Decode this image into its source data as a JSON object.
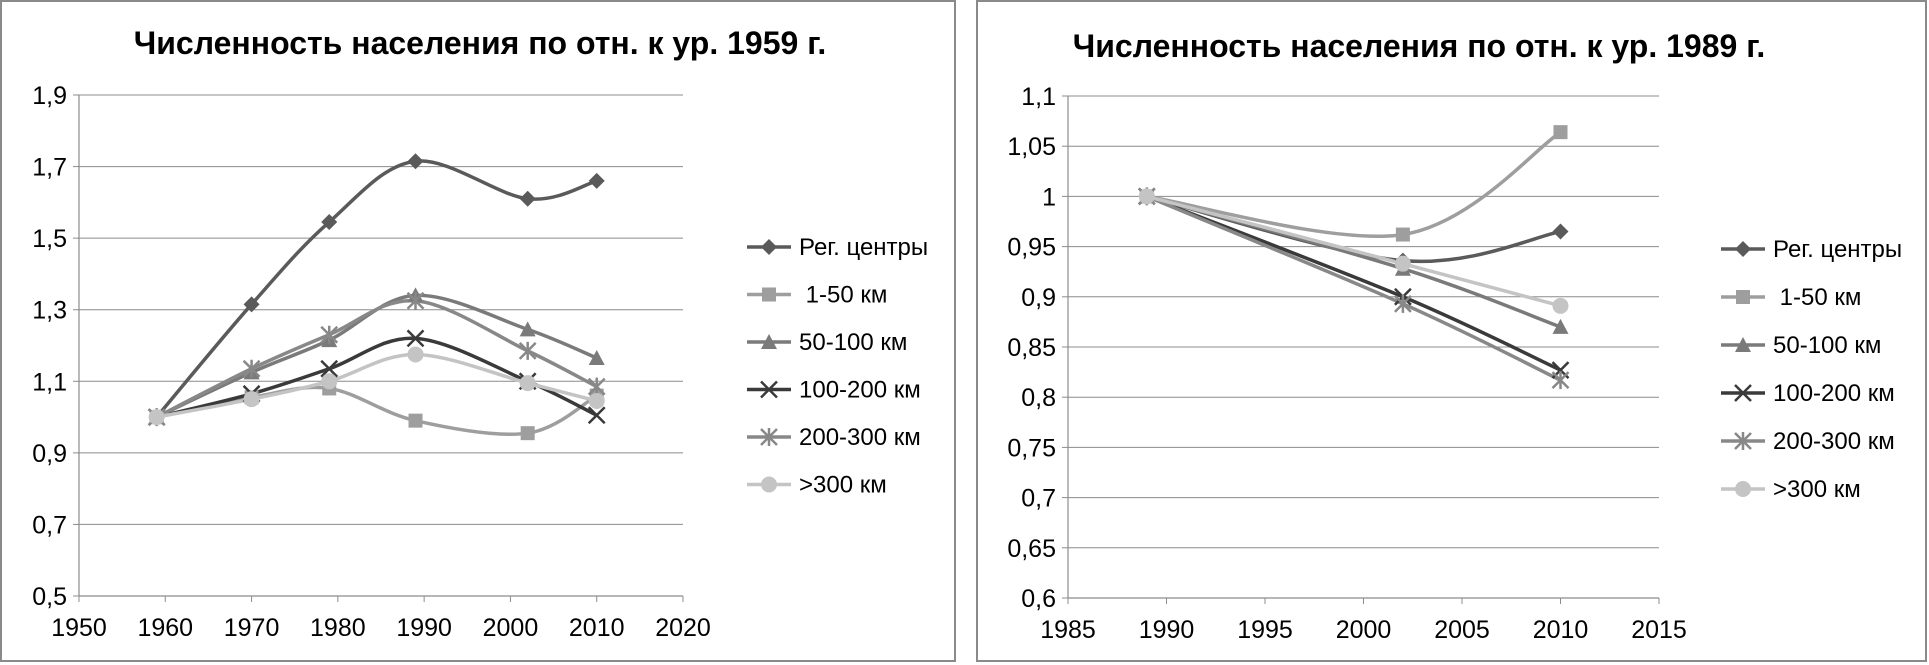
{
  "chart_data": [
    {
      "type": "line",
      "title": "Численность населения по отн. к ур. 1959 г.",
      "xlabel": "",
      "ylabel": "",
      "xlim": [
        1950,
        2020
      ],
      "ylim": [
        0.5,
        1.9
      ],
      "x_ticks": [
        "1950",
        "1960",
        "1970",
        "1980",
        "1990",
        "2000",
        "2010",
        "2020"
      ],
      "y_ticks": [
        "0,5",
        "0,7",
        "0,9",
        "1,1",
        "1,3",
        "1,5",
        "1,7",
        "1,9"
      ],
      "grid": "horizontal",
      "legend": "right",
      "smooth": true,
      "series": [
        {
          "name": "Рег. центры",
          "color": "#5a5a5a",
          "marker": "diamond",
          "x": [
            1959,
            1970,
            1979,
            1989,
            2002,
            2010
          ],
          "y": [
            1.0,
            1.315,
            1.545,
            1.715,
            1.61,
            1.66
          ]
        },
        {
          "name": " 1-50 км",
          "color": "#9e9e9e",
          "marker": "square",
          "x": [
            1959,
            1970,
            1979,
            1989,
            2002,
            2010
          ],
          "y": [
            1.0,
            1.055,
            1.08,
            0.99,
            0.955,
            1.06
          ]
        },
        {
          "name": "50-100 км",
          "color": "#7a7a7a",
          "marker": "triangle",
          "x": [
            1959,
            1970,
            1979,
            1989,
            2002,
            2010
          ],
          "y": [
            1.0,
            1.125,
            1.215,
            1.34,
            1.245,
            1.165
          ]
        },
        {
          "name": "100-200 км",
          "color": "#3a3a3a",
          "marker": "x",
          "x": [
            1959,
            1970,
            1979,
            1989,
            2002,
            2010
          ],
          "y": [
            1.0,
            1.065,
            1.135,
            1.22,
            1.1,
            1.005
          ]
        },
        {
          "name": "200-300 км",
          "color": "#888888",
          "marker": "star",
          "x": [
            1959,
            1970,
            1979,
            1989,
            2002,
            2010
          ],
          "y": [
            1.0,
            1.135,
            1.23,
            1.325,
            1.185,
            1.085
          ]
        },
        {
          "name": ">300 км",
          "color": "#c4c4c4",
          "marker": "circle",
          "x": [
            1959,
            1970,
            1979,
            1989,
            2002,
            2010
          ],
          "y": [
            1.0,
            1.05,
            1.1,
            1.175,
            1.095,
            1.045
          ]
        }
      ]
    },
    {
      "type": "line",
      "title": "Численность населения по отн. к ур. 1989 г.",
      "xlabel": "",
      "ylabel": "",
      "xlim": [
        1985,
        2015
      ],
      "ylim": [
        0.6,
        1.1
      ],
      "x_ticks": [
        "1985",
        "1990",
        "1995",
        "2000",
        "2005",
        "2010",
        "2015"
      ],
      "y_ticks": [
        "0,6",
        "0,65",
        "0,7",
        "0,75",
        "0,8",
        "0,85",
        "0,9",
        "0,95",
        "1",
        "1,05",
        "1,1"
      ],
      "grid": "horizontal",
      "legend": "right",
      "smooth": true,
      "series": [
        {
          "name": "Рег. центры",
          "color": "#5a5a5a",
          "marker": "diamond",
          "x": [
            1989,
            2002,
            2010
          ],
          "y": [
            1.0,
            0.936,
            0.965
          ]
        },
        {
          "name": " 1-50 км",
          "color": "#9e9e9e",
          "marker": "square",
          "x": [
            1989,
            2002,
            2010
          ],
          "y": [
            1.0,
            0.962,
            1.064
          ]
        },
        {
          "name": "50-100 км",
          "color": "#7a7a7a",
          "marker": "triangle",
          "x": [
            1989,
            2002,
            2010
          ],
          "y": [
            1.0,
            0.928,
            0.87
          ]
        },
        {
          "name": "100-200 км",
          "color": "#3a3a3a",
          "marker": "x",
          "x": [
            1989,
            2002,
            2010
          ],
          "y": [
            1.0,
            0.9,
            0.827
          ]
        },
        {
          "name": "200-300 км",
          "color": "#888888",
          "marker": "star",
          "x": [
            1989,
            2002,
            2010
          ],
          "y": [
            1.0,
            0.893,
            0.817
          ]
        },
        {
          "name": ">300 км",
          "color": "#c4c4c4",
          "marker": "circle",
          "x": [
            1989,
            2002,
            2010
          ],
          "y": [
            1.0,
            0.933,
            0.891
          ]
        }
      ]
    }
  ]
}
